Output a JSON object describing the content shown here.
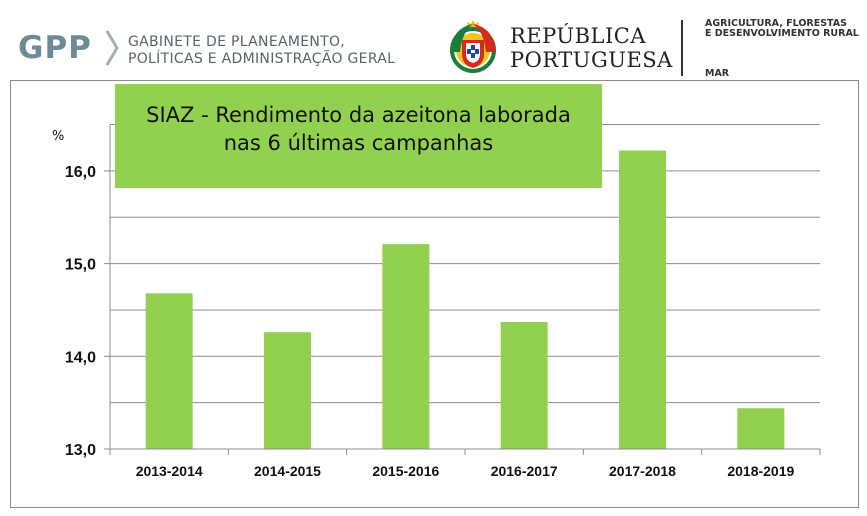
{
  "header": {
    "gpp_logo": "GPP",
    "gpp_line1": "GABINETE DE PLANEAMENTO,",
    "gpp_line2": "POLÍTICAS E ADMINISTRAÇÃO GERAL",
    "republica_line1": "REPÚBLICA",
    "republica_line2": "PORTUGUESA",
    "ministry_line1": "AGRICULTURA, FLORESTAS",
    "ministry_line2": "E DESENVOLVIMENTO RURAL",
    "ministry_line3": "MAR"
  },
  "chart_data": {
    "type": "bar",
    "title_line1": "SIAZ - Rendimento da azeitona laborada",
    "title_line2": "nas 6 últimas campanhas",
    "ylabel": "%",
    "categories": [
      "2013-2014",
      "2014-2015",
      "2015-2016",
      "2016-2017",
      "2017-2018",
      "2018-2019"
    ],
    "values": [
      14.68,
      14.26,
      15.21,
      14.37,
      16.22,
      13.44
    ],
    "ylim": [
      13.0,
      16.5
    ],
    "yticks": [
      13.0,
      14.0,
      15.0,
      16.0
    ],
    "ytick_labels": [
      "13,0",
      "14,0",
      "15,0",
      "16,0"
    ],
    "bar_color": "#92d050",
    "grid": true
  }
}
